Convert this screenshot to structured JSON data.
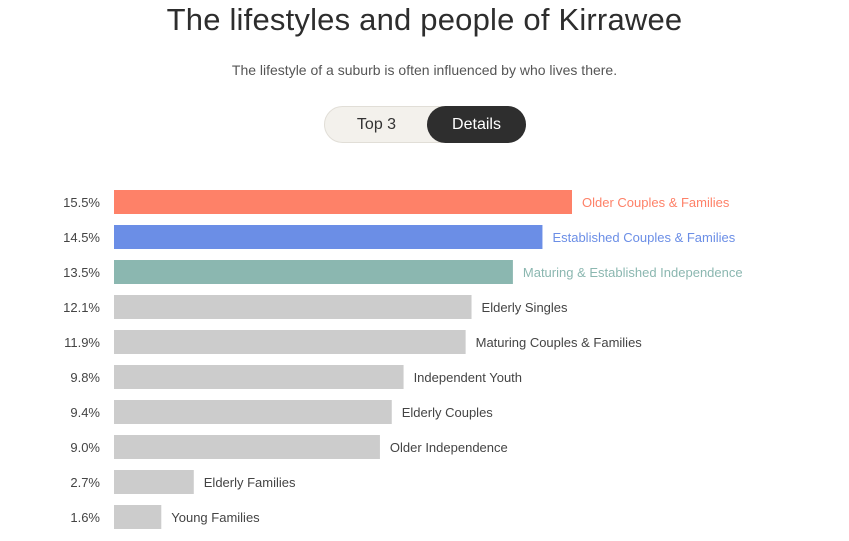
{
  "header": {
    "title": "The lifestyles and people of Kirrawee",
    "subtitle": "The lifestyle of a suburb is often influenced by who lives there."
  },
  "toggle": {
    "options": [
      "Top 3",
      "Details"
    ],
    "selected": "Details"
  },
  "colors": {
    "highlight": [
      "#fe8168",
      "#6b8ee6",
      "#8bb7b0"
    ],
    "default_bar": "#cccccc",
    "default_label": "#444444"
  },
  "chart_data": {
    "type": "bar",
    "orientation": "horizontal",
    "categories": [
      "Older Couples & Families",
      "Established Couples & Families",
      "Maturing & Established Independence",
      "Elderly Singles",
      "Maturing Couples & Families",
      "Independent Youth",
      "Elderly Couples",
      "Older Independence",
      "Elderly Families",
      "Young Families"
    ],
    "values": [
      15.5,
      14.5,
      13.5,
      12.1,
      11.9,
      9.8,
      9.4,
      9.0,
      2.7,
      1.6
    ],
    "value_labels": [
      "15.5%",
      "14.5%",
      "13.5%",
      "12.1%",
      "11.9%",
      "9.8%",
      "9.4%",
      "9.0%",
      "2.7%",
      "1.6%"
    ],
    "unit": "%",
    "grid": false,
    "legend": "none"
  }
}
